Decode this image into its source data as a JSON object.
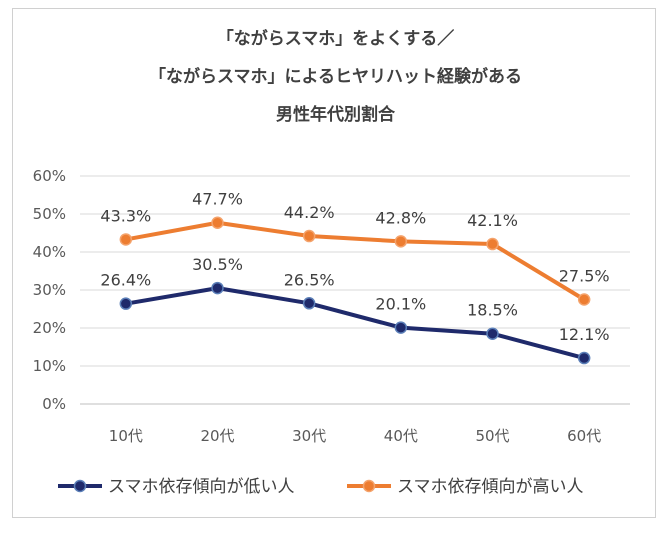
{
  "chart_data": {
    "type": "line",
    "title_lines": [
      "「ながらスマホ」をよくする／",
      "「ながらスマホ」によるヒヤリハット経験がある",
      "男性年代別割合"
    ],
    "categories": [
      "10代",
      "20代",
      "30代",
      "40代",
      "50代",
      "60代"
    ],
    "series": [
      {
        "name": "スマホ依存傾向が低い人",
        "values": [
          26.4,
          30.5,
          26.5,
          20.1,
          18.5,
          12.1
        ],
        "labels": [
          "26.4%",
          "30.5%",
          "26.5%",
          "20.1%",
          "18.5%",
          "12.1%"
        ],
        "color": "#1f2a6b"
      },
      {
        "name": "スマホ依存傾向が高い人",
        "values": [
          43.3,
          47.7,
          44.2,
          42.8,
          42.1,
          27.5
        ],
        "labels": [
          "43.3%",
          "47.7%",
          "44.2%",
          "42.8%",
          "42.1%",
          "27.5%"
        ],
        "color": "#ed7d31"
      }
    ],
    "yticks": [
      "0%",
      "10%",
      "20%",
      "30%",
      "40%",
      "50%",
      "60%"
    ],
    "ylim": [
      0,
      60
    ],
    "grid": true,
    "legend": "bottom"
  }
}
